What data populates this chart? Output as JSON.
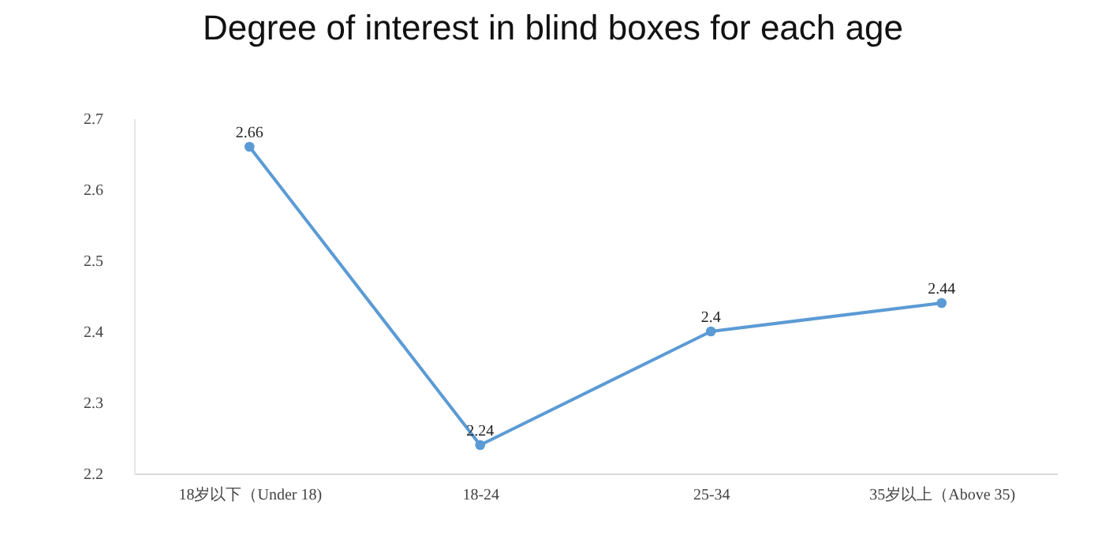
{
  "chart_data": {
    "type": "line",
    "title": "Degree of interest in blind boxes for each age",
    "categories": [
      "18岁以下（Under 18)",
      "18-24",
      "25-34",
      "35岁以上（Above 35)"
    ],
    "series": [
      {
        "color": "#5b9bd5",
        "values": [
          2.66,
          2.24,
          2.4,
          2.44
        ]
      }
    ],
    "ylim": [
      2.2,
      2.7
    ],
    "yticks": [
      2.2,
      2.3,
      2.4,
      2.5,
      2.6,
      2.7
    ],
    "grid": false,
    "legend": false,
    "marker": "circle",
    "line_style": "solid",
    "data_labels": true
  }
}
